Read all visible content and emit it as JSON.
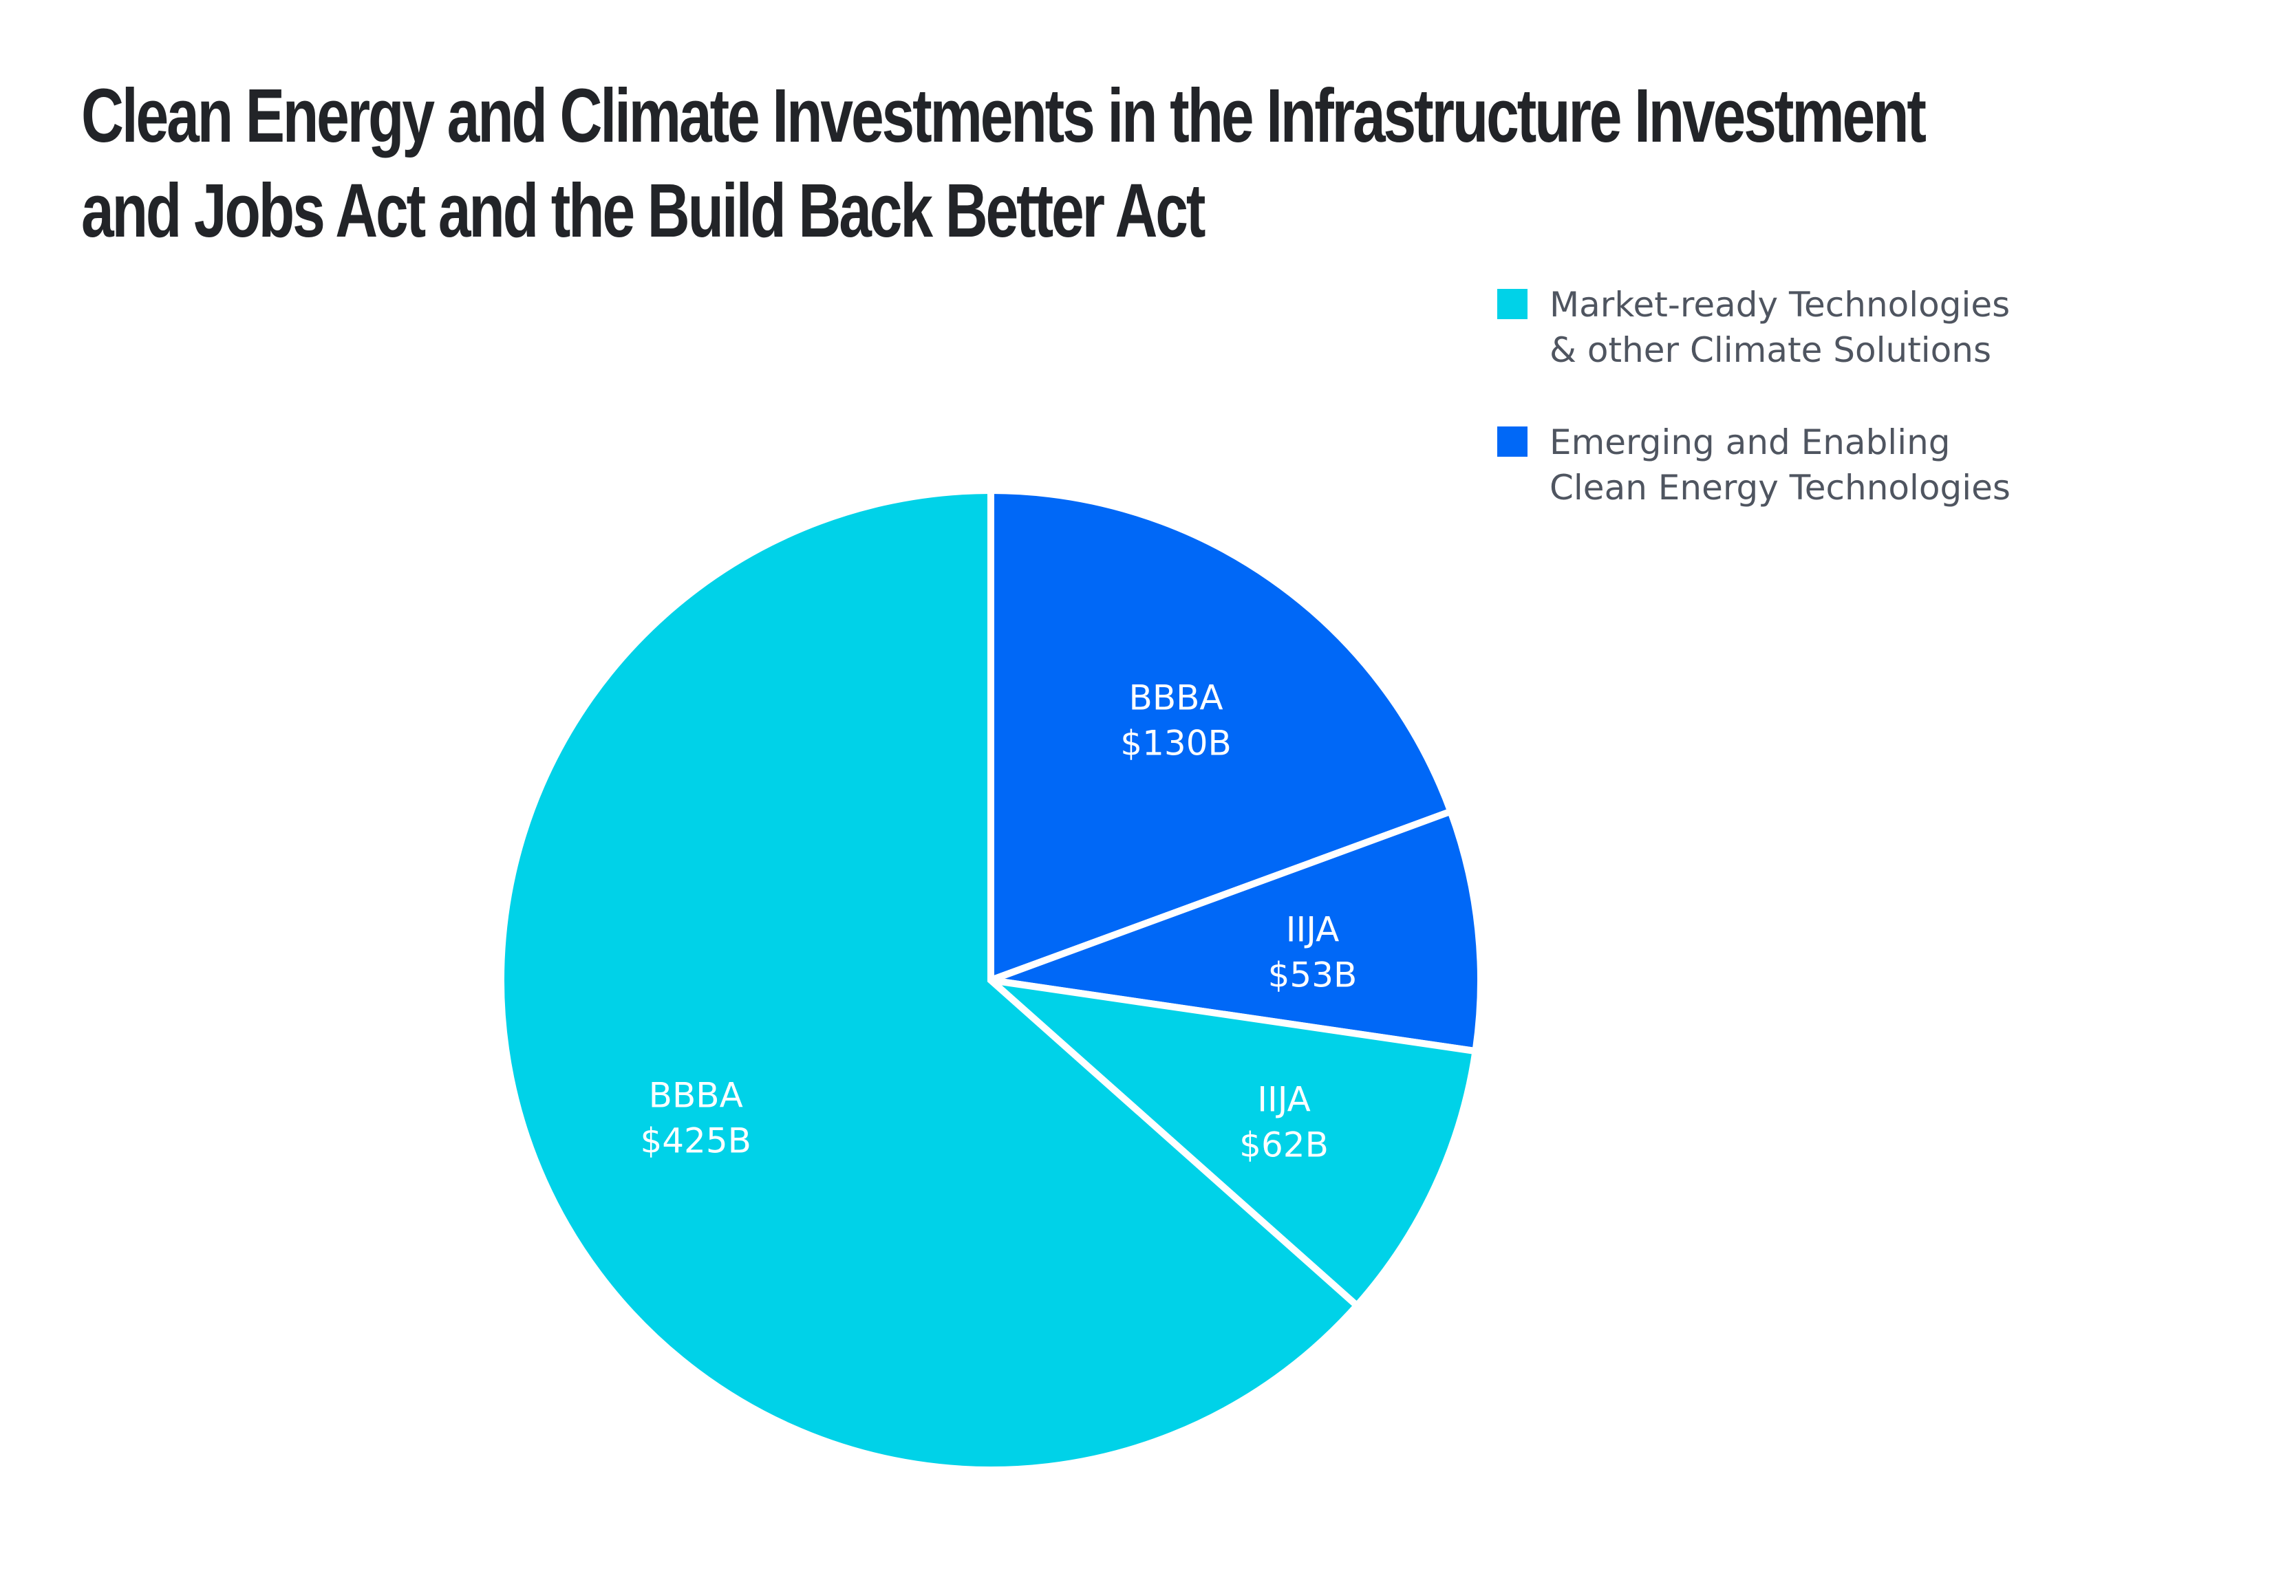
{
  "title_lines": [
    "Clean Energy and Climate Investments in the Infrastructure Investment",
    "and Jobs Act and the Build Back Better Act"
  ],
  "legend": [
    {
      "label": "Market-ready Technologies\n& other Climate Solutions",
      "color": "#00d2e8",
      "icon": "square-swatch-icon"
    },
    {
      "label": "Emerging and Enabling\nClean Energy Technologies",
      "color": "#0068f7",
      "icon": "square-swatch-icon"
    }
  ],
  "chart_data": {
    "type": "pie",
    "title": "Clean Energy and Climate Investments in the Infrastructure Investment and Jobs Act and the Build Back Better Act",
    "start_angle_deg": 0,
    "direction": "clockwise",
    "slices": [
      {
        "name": "BBBA",
        "value": 130,
        "value_label": "$130B",
        "series": "Emerging and Enabling Clean Energy Technologies",
        "color": "#0068f7"
      },
      {
        "name": "IIJA",
        "value": 53,
        "value_label": "$53B",
        "series": "Emerging and Enabling Clean Energy Technologies",
        "color": "#0068f7"
      },
      {
        "name": "IIJA",
        "value": 62,
        "value_label": "$62B",
        "series": "Market-ready Technologies & other Climate Solutions",
        "color": "#00d2e8"
      },
      {
        "name": "BBBA",
        "value": 425,
        "value_label": "$425B",
        "series": "Market-ready Technologies & other Climate Solutions",
        "color": "#00d2e8"
      }
    ],
    "legend_position": "top-right"
  }
}
